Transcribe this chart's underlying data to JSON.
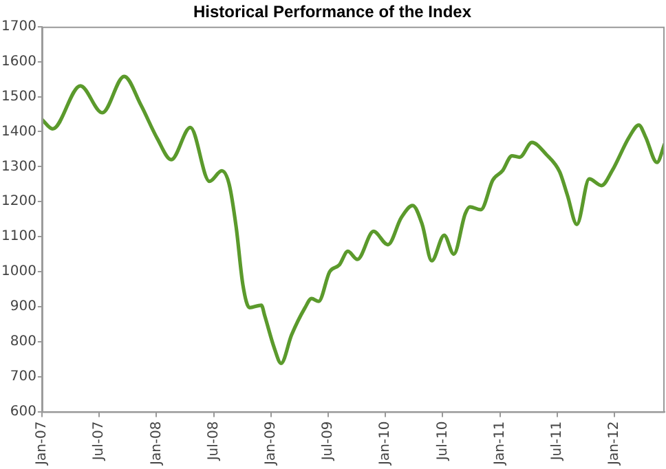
{
  "chart_data": {
    "type": "line",
    "title": "Historical Performance of the Index",
    "x": [
      "2007-01-01",
      "2007-02-05",
      "2007-05-02",
      "2007-07-11",
      "2007-09-20",
      "2007-11-12",
      "2008-01-04",
      "2008-02-18",
      "2008-04-18",
      "2008-06-18",
      "2008-07-27",
      "2008-08-20",
      "2008-09-12",
      "2008-10-03",
      "2008-10-24",
      "2008-12-01",
      "2008-12-12",
      "2009-01-12",
      "2009-02-03",
      "2009-03-06",
      "2009-04-18",
      "2009-05-09",
      "2009-06-01",
      "2009-07-06",
      "2009-08-06",
      "2009-09-03",
      "2009-10-03",
      "2009-11-24",
      "2010-01-09",
      "2010-02-21",
      "2010-03-27",
      "2010-04-27",
      "2010-05-27",
      "2010-07-06",
      "2010-08-06",
      "2010-09-12",
      "2010-09-27",
      "2010-11-01",
      "2010-12-09",
      "2011-01-09",
      "2011-02-09",
      "2011-03-03",
      "2011-04-12",
      "2011-05-27",
      "2011-07-09",
      "2011-08-03",
      "2011-09-03",
      "2011-10-12",
      "2011-11-21",
      "2011-12-24",
      "2012-02-18",
      "2012-03-18",
      "2012-04-09",
      "2012-05-15",
      "2012-06-09"
    ],
    "series": [
      {
        "color": "#5b9a2c",
        "values": [
          1435,
          1408,
          1531,
          1454,
          1558,
          1477,
          1380,
          1320,
          1412,
          1258,
          1288,
          1250,
          1127,
          962,
          897,
          904,
          873,
          781,
          738,
          819,
          896,
          923,
          915,
          1000,
          1019,
          1058,
          1035,
          1115,
          1077,
          1154,
          1189,
          1135,
          1031,
          1104,
          1050,
          1165,
          1185,
          1177,
          1262,
          1288,
          1331,
          1327,
          1369,
          1335,
          1285,
          1219,
          1135,
          1265,
          1246,
          1288,
          1385,
          1419,
          1385,
          1312,
          1365
        ]
      }
    ],
    "xlim": [
      "2007-01-01",
      "2012-06-09"
    ],
    "xticks": [
      {
        "value": "2007-01",
        "label": "Jan-07"
      },
      {
        "value": "2007-07",
        "label": "Jul-07"
      },
      {
        "value": "2008-01",
        "label": "Jan-08"
      },
      {
        "value": "2008-07",
        "label": "Jul-08"
      },
      {
        "value": "2009-01",
        "label": "Jan-09"
      },
      {
        "value": "2009-07",
        "label": "Jul-09"
      },
      {
        "value": "2010-01",
        "label": "Jan-10"
      },
      {
        "value": "2010-07",
        "label": "Jul-10"
      },
      {
        "value": "2011-01",
        "label": "Jan-11"
      },
      {
        "value": "2011-07",
        "label": "Jul-11"
      },
      {
        "value": "2012-01",
        "label": "Jan-12"
      }
    ],
    "ylim": [
      600,
      1700
    ],
    "yticks": [
      600,
      700,
      800,
      900,
      1000,
      1100,
      1200,
      1300,
      1400,
      1500,
      1600,
      1700
    ],
    "grid": false,
    "legend": false,
    "marker": "none",
    "line_style": "solid"
  }
}
